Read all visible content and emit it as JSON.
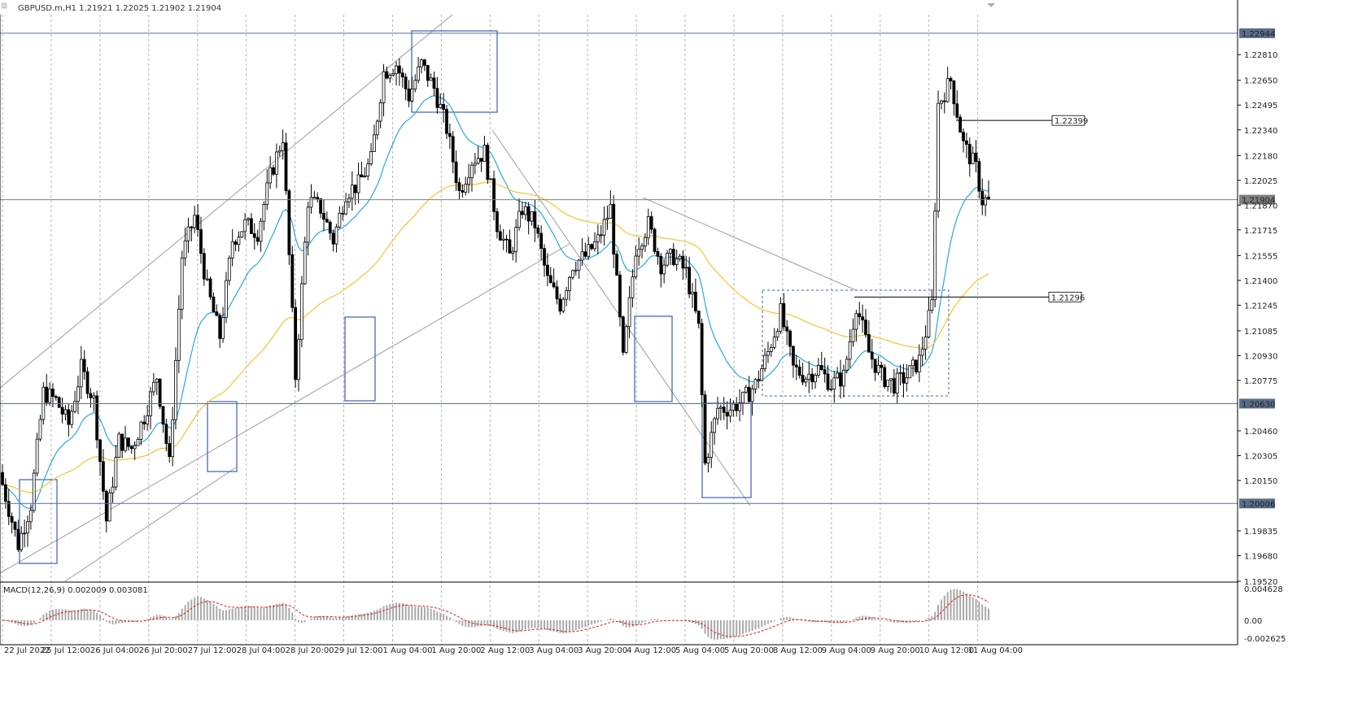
{
  "window": {
    "symbol_info": "GBPUSD.m,H1  1.21921 1.22025 1.21902 1.21904"
  },
  "chart_data": {
    "type": "candlestick",
    "symbol": "GBPUSD.m",
    "timeframe": "H1",
    "ohlc_header": {
      "open": 1.21921,
      "high": 1.22025,
      "low": 1.21902,
      "close": 1.21904
    },
    "price_axis": {
      "ticks": [
        "1.22810",
        "1.22650",
        "1.22495",
        "1.22340",
        "1.22180",
        "1.22025",
        "1.21870",
        "1.21715",
        "1.21555",
        "1.21400",
        "1.21245",
        "1.21085",
        "1.20930",
        "1.20775",
        "1.20460",
        "1.20305",
        "1.20150",
        "1.19835",
        "1.19680",
        "1.19520"
      ],
      "ylim": [
        1.1952,
        1.2306
      ]
    },
    "price_labels": [
      {
        "text": "1.22944",
        "value": 1.22944,
        "color": "#5a6d8a"
      },
      {
        "text": "1.21904",
        "value": 1.21904,
        "color": "#7f7f7f"
      },
      {
        "text": "1.20630",
        "value": 1.2063,
        "color": "#5a6d8a"
      },
      {
        "text": "1.20006",
        "value": 1.20006,
        "color": "#5a6d8a"
      }
    ],
    "level_callouts": [
      {
        "text": "1.22399",
        "value": 1.22399
      },
      {
        "text": "1.21296",
        "value": 1.21296
      }
    ],
    "time_axis": [
      "22 Jul 2022",
      "25 Jul 12:00",
      "26 Jul 04:00",
      "26 Jul 20:00",
      "27 Jul 12:00",
      "28 Jul 04:00",
      "28 Jul 20:00",
      "29 Jul 12:00",
      "1 Aug 04:00",
      "1 Aug 20:00",
      "2 Aug 12:00",
      "3 Aug 04:00",
      "3 Aug 20:00",
      "4 Aug 12:00",
      "5 Aug 04:00",
      "5 Aug 20:00",
      "8 Aug 12:00",
      "9 Aug 04:00",
      "9 Aug 20:00",
      "10 Aug 12:00",
      "11 Aug 04:00"
    ],
    "price_path": [
      [
        0,
        1.202
      ],
      [
        6,
        1.1975
      ],
      [
        10,
        1.2
      ],
      [
        14,
        1.207
      ],
      [
        18,
        1.2065
      ],
      [
        22,
        1.205
      ],
      [
        26,
        1.2085
      ],
      [
        30,
        1.2065
      ],
      [
        34,
        1.199
      ],
      [
        38,
        1.204
      ],
      [
        42,
        1.2035
      ],
      [
        46,
        1.2055
      ],
      [
        50,
        1.208
      ],
      [
        54,
        1.2025
      ],
      [
        58,
        1.2155
      ],
      [
        62,
        1.218
      ],
      [
        66,
        1.2135
      ],
      [
        70,
        1.2105
      ],
      [
        74,
        1.2165
      ],
      [
        78,
        1.2175
      ],
      [
        82,
        1.217
      ],
      [
        86,
        1.2205
      ],
      [
        90,
        1.223
      ],
      [
        94,
        1.208
      ],
      [
        98,
        1.219
      ],
      [
        102,
        1.2185
      ],
      [
        106,
        1.2165
      ],
      [
        110,
        1.2195
      ],
      [
        114,
        1.22
      ],
      [
        118,
        1.2215
      ],
      [
        122,
        1.227
      ],
      [
        126,
        1.2275
      ],
      [
        130,
        1.2255
      ],
      [
        134,
        1.2275
      ],
      [
        138,
        1.226
      ],
      [
        142,
        1.2235
      ],
      [
        146,
        1.2195
      ],
      [
        150,
        1.2215
      ],
      [
        154,
        1.222
      ],
      [
        158,
        1.2175
      ],
      [
        162,
        1.2155
      ],
      [
        166,
        1.2185
      ],
      [
        170,
        1.2175
      ],
      [
        174,
        1.214
      ],
      [
        178,
        1.2125
      ],
      [
        182,
        1.215
      ],
      [
        186,
        1.2155
      ],
      [
        190,
        1.2165
      ],
      [
        194,
        1.2185
      ],
      [
        198,
        1.209
      ],
      [
        202,
        1.216
      ],
      [
        206,
        1.2175
      ],
      [
        210,
        1.215
      ],
      [
        214,
        1.2155
      ],
      [
        218,
        1.2145
      ],
      [
        222,
        1.211
      ],
      [
        224,
        1.2025
      ],
      [
        228,
        1.206
      ],
      [
        232,
        1.206
      ],
      [
        236,
        1.2065
      ],
      [
        240,
        1.2075
      ],
      [
        244,
        1.2095
      ],
      [
        248,
        1.212
      ],
      [
        252,
        1.2085
      ],
      [
        256,
        1.208
      ],
      [
        260,
        1.2085
      ],
      [
        264,
        1.2075
      ],
      [
        268,
        1.208
      ],
      [
        272,
        1.2125
      ],
      [
        276,
        1.2095
      ],
      [
        280,
        1.208
      ],
      [
        284,
        1.2075
      ],
      [
        288,
        1.208
      ],
      [
        292,
        1.209
      ],
      [
        296,
        1.2125
      ],
      [
        298,
        1.225
      ],
      [
        302,
        1.2265
      ],
      [
        306,
        1.2225
      ],
      [
        310,
        1.221
      ],
      [
        312,
        1.219
      ]
    ],
    "indicators": {
      "ma_fast_color": "#29a9e0",
      "ma_slow_color": "#f5c431"
    },
    "macd": {
      "label": "MACD(12,26,9) 0.002009 0.003081",
      "ticks": [
        "0.004628",
        "0.00",
        "-0.002625"
      ],
      "ylim": [
        -0.002625,
        0.004628
      ]
    },
    "colors": {
      "candle": "#000000",
      "grid": "#b4b4b4",
      "hline": "#5a6d8a",
      "box": "#3d5fad",
      "trend": "#9d9d9d",
      "macd_hist": "#a9a9a9",
      "macd_signal": "#e01b1b"
    }
  }
}
